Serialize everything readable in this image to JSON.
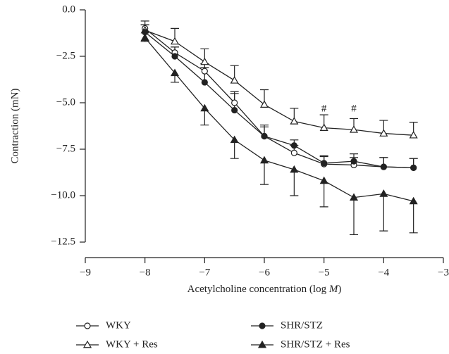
{
  "chart_data": {
    "type": "line",
    "ylabel": "Contraction (mN)",
    "xlabel": [
      "Acetylcholine concentration (log ",
      "M",
      ")"
    ],
    "x": [
      -8,
      -7.5,
      -7,
      -6.5,
      -6,
      -5.5,
      -5,
      -4.5,
      -4,
      -3.5
    ],
    "xlim": [
      -9,
      -3
    ],
    "xticks": [
      {
        "value": -9,
        "label": "−9"
      },
      {
        "value": -8,
        "label": "−8"
      },
      {
        "value": -7,
        "label": "−7"
      },
      {
        "value": -6,
        "label": "−6"
      },
      {
        "value": -5,
        "label": "−5"
      },
      {
        "value": -4,
        "label": "−4"
      },
      {
        "value": -3,
        "label": "−3"
      }
    ],
    "ylim": [
      -12.5,
      0
    ],
    "yticks": [
      {
        "value": 0,
        "label": "0.0"
      },
      {
        "value": -2.5,
        "label": "−2.5"
      },
      {
        "value": -5,
        "label": "−5.0"
      },
      {
        "value": -7.5,
        "label": "−7.5"
      },
      {
        "value": -10,
        "label": "−10.0"
      },
      {
        "value": -12.5,
        "label": "−12.5"
      }
    ],
    "series": [
      {
        "name": "WKY",
        "color": "#222222",
        "marker": "circle",
        "filled": false,
        "error_direction": "up",
        "values": [
          -1.0,
          -2.3,
          -3.3,
          -5.0,
          -6.8,
          -7.7,
          -8.3,
          -8.35,
          -8.45,
          -8.5
        ],
        "errors": [
          0.4,
          0.3,
          0.4,
          0.5,
          0.5,
          0.4,
          0.4,
          0.4,
          0.5,
          0.5
        ]
      },
      {
        "name": "WKY + Res",
        "color": "#222222",
        "marker": "triangle",
        "filled": false,
        "error_direction": "up",
        "values": [
          -1.1,
          -1.7,
          -2.8,
          -3.8,
          -5.1,
          -6.0,
          -6.35,
          -6.45,
          -6.65,
          -6.75
        ],
        "errors": [
          0.3,
          0.7,
          0.7,
          0.8,
          0.8,
          0.7,
          0.7,
          0.6,
          0.7,
          0.7
        ]
      },
      {
        "name": "SHR/STZ",
        "color": "#222222",
        "marker": "circle",
        "filled": true,
        "error_direction": "up",
        "values": [
          -1.2,
          -2.5,
          -3.9,
          -5.4,
          -6.8,
          -7.3,
          -8.25,
          -8.15,
          -8.45,
          -8.5
        ],
        "errors": [
          0.4,
          0.5,
          0.8,
          1.0,
          0.6,
          0.3,
          0.4,
          0.4,
          0.5,
          0.5
        ]
      },
      {
        "name": "SHR/STZ + Res",
        "color": "#222222",
        "marker": "triangle",
        "filled": true,
        "error_direction": "down",
        "values": [
          -1.5,
          -3.4,
          -5.3,
          -7.0,
          -8.1,
          -8.6,
          -9.2,
          -10.1,
          -9.9,
          -10.3
        ],
        "errors": [
          0.2,
          0.5,
          0.9,
          1.0,
          1.3,
          1.4,
          1.4,
          2.0,
          2.0,
          1.7
        ]
      }
    ],
    "annotations": [
      {
        "text": "#",
        "x": -5,
        "y": -5.35
      },
      {
        "text": "#",
        "x": -4.5,
        "y": -5.35
      }
    ]
  }
}
